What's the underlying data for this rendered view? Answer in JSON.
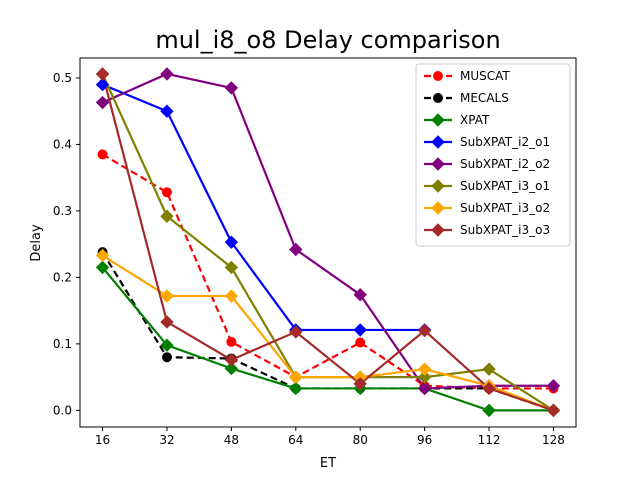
{
  "chart_data": {
    "type": "line",
    "title": "mul_i8_o8 Delay comparison",
    "xlabel": "ET",
    "ylabel": "Delay",
    "x": [
      16,
      32,
      48,
      64,
      80,
      96,
      112,
      128
    ],
    "x_ticks": [
      "16",
      "32",
      "48",
      "64",
      "80",
      "96",
      "112",
      "128"
    ],
    "y_ticks": [
      "0.0",
      "0.1",
      "0.2",
      "0.3",
      "0.4",
      "0.5"
    ],
    "xlim": [
      10.4,
      133.6
    ],
    "ylim": [
      -0.025,
      0.53
    ],
    "grid": false,
    "legend_position": "top-right",
    "series": [
      {
        "name": "MUSCAT",
        "color": "#ff0000",
        "dash": "dashed",
        "marker": "circle",
        "values": [
          0.385,
          0.328,
          0.103,
          0.05,
          0.102,
          0.037,
          0.033,
          0.033
        ]
      },
      {
        "name": "MECALS",
        "color": "#000000",
        "dash": "dashed",
        "marker": "circle",
        "values": [
          0.238,
          0.08,
          0.078,
          0.033,
          0.033,
          0.033,
          0.033,
          0.0
        ]
      },
      {
        "name": "XPAT",
        "color": "#008000",
        "dash": "solid",
        "marker": "diamond",
        "values": [
          0.215,
          0.098,
          0.063,
          0.033,
          0.033,
          0.033,
          0.0,
          0.0
        ]
      },
      {
        "name": "SubXPAT_i2_o1",
        "color": "#0000ff",
        "dash": "solid",
        "marker": "diamond",
        "values": [
          0.49,
          0.45,
          0.253,
          0.121,
          0.121,
          0.121,
          null,
          null
        ]
      },
      {
        "name": "SubXPAT_i2_o2",
        "color": "#800080",
        "dash": "solid",
        "marker": "diamond",
        "values": [
          0.463,
          0.506,
          0.485,
          0.242,
          0.174,
          0.033,
          0.037,
          0.037
        ]
      },
      {
        "name": "SubXPAT_i3_o1",
        "color": "#808000",
        "dash": "solid",
        "marker": "diamond",
        "values": [
          0.506,
          0.292,
          0.215,
          0.05,
          0.05,
          0.05,
          0.062,
          0.0
        ]
      },
      {
        "name": "SubXPAT_i3_o2",
        "color": "#ffa500",
        "dash": "solid",
        "marker": "diamond",
        "values": [
          0.233,
          0.172,
          0.172,
          0.05,
          0.05,
          0.062,
          0.037,
          0.0
        ]
      },
      {
        "name": "SubXPAT_i3_o3",
        "color": "#a52a2a",
        "dash": "solid",
        "marker": "diamond",
        "values": [
          0.506,
          0.133,
          0.076,
          0.118,
          0.04,
          0.12,
          0.033,
          0.0
        ]
      }
    ]
  }
}
